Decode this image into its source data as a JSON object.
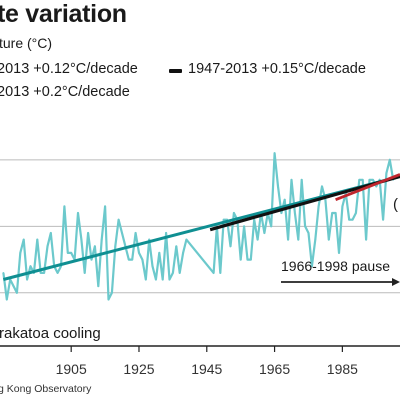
{
  "title": "te variation",
  "subtitle": "ture (°C)",
  "legend": [
    {
      "label": "2013 +0.12°C/decade",
      "color": "#0f8f92"
    },
    {
      "label": "1947-2013 +0.15°C/decade",
      "color": "#111111"
    },
    {
      "label": "2013 +0.2°C/decade",
      "color": "#c0262d"
    }
  ],
  "source": "g Kong Observatory",
  "annotations": {
    "krakatoa": "rakatoa cooling",
    "pause": "1966-1998 pause",
    "edge_mark": "("
  },
  "colors": {
    "observed": "#6cc9cc",
    "trend_long": "#0f8f92",
    "trend_1947": "#111111",
    "trend_recent": "#c0262d",
    "grid": "#bbbbbb",
    "axis": "#222222"
  },
  "chart_data": {
    "type": "line",
    "xlabel": "",
    "ylabel": "",
    "xlim": [
      1884,
      2002
    ],
    "ylim": [
      21.2,
      24.9
    ],
    "x_ticks": [
      "1905",
      "1925",
      "1945",
      "1965",
      "1985"
    ],
    "tick_values": [
      1905,
      1925,
      1945,
      1965,
      1985
    ],
    "grid": "horizontal",
    "series": [
      {
        "name": "",
        "x": [
          1885,
          1886,
          1887,
          1888,
          1889,
          1890,
          1891,
          1892,
          1893,
          1894,
          1895,
          1896,
          1897,
          1898,
          1899,
          1900,
          1901,
          1902,
          1903,
          1904,
          1905,
          1906,
          1907,
          1908,
          1909,
          1910,
          1911,
          1912,
          1913,
          1914,
          1915,
          1916,
          1917,
          1918,
          1919,
          1920,
          1921,
          1922,
          1923,
          1924,
          1925,
          1926,
          1927,
          1928,
          1929,
          1930,
          1931,
          1932,
          1933,
          1934,
          1935,
          1936,
          1937,
          1938,
          1939,
          1947,
          1948,
          1949,
          1950,
          1951,
          1952,
          1953,
          1954,
          1955,
          1956,
          1957,
          1958,
          1959,
          1960,
          1961,
          1962,
          1963,
          1964,
          1965,
          1966,
          1967,
          1968,
          1969,
          1970,
          1971,
          1972,
          1973,
          1974,
          1975,
          1976,
          1977,
          1978,
          1979,
          1980,
          1981,
          1982,
          1983,
          1984,
          1985,
          1986,
          1987,
          1988,
          1989,
          1990,
          1991,
          1992,
          1993,
          1994,
          1995,
          1996,
          1997,
          1998,
          1999,
          2000
        ],
        "y": [
          22.3,
          21.9,
          22.2,
          22.1,
          22.0,
          22.6,
          22.8,
          22.2,
          22.4,
          22.3,
          22.8,
          22.3,
          22.3,
          22.7,
          22.9,
          22.4,
          22.3,
          22.4,
          23.3,
          22.6,
          22.6,
          22.5,
          23.2,
          22.8,
          22.3,
          22.9,
          22.5,
          22.7,
          22.1,
          22.8,
          23.3,
          21.9,
          22.0,
          22.7,
          23.1,
          22.9,
          22.7,
          22.5,
          22.5,
          22.9,
          22.6,
          22.5,
          22.2,
          22.8,
          22.4,
          22.2,
          22.6,
          22.2,
          22.9,
          22.2,
          22.3,
          22.7,
          22.3,
          22.6,
          22.8,
          22.3,
          23.0,
          22.3,
          23.1,
          23.1,
          22.7,
          23.2,
          23.1,
          22.5,
          23.0,
          22.5,
          22.5,
          23.1,
          22.8,
          23.2,
          22.9,
          23.2,
          23.0,
          24.1,
          23.6,
          23.2,
          23.4,
          22.8,
          23.7,
          23.2,
          22.8,
          23.7,
          23.0,
          22.9,
          22.4,
          22.8,
          23.3,
          23.6,
          23.4,
          22.8,
          23.2,
          23.2,
          22.6,
          23.3,
          23.5,
          23.1,
          23.1,
          23.2,
          23.7,
          23.7,
          22.8,
          23.7,
          23.7,
          23.6,
          23.7,
          23.1,
          23.8,
          24.0,
          23.7
        ]
      }
    ],
    "trends": [
      {
        "label": "2013 +0.12°C/decade",
        "x": [
          1885,
          2002
        ],
        "y": [
          22.2,
          23.75
        ]
      },
      {
        "label": "1947-2013 +0.15°C/decade",
        "x": [
          1946,
          2002
        ],
        "y": [
          22.95,
          23.75
        ]
      },
      {
        "label": "2013 +0.2°C/decade",
        "x": [
          1983,
          2002
        ],
        "y": [
          23.4,
          23.78
        ]
      }
    ],
    "pause_range": [
      1966,
      1998
    ]
  }
}
